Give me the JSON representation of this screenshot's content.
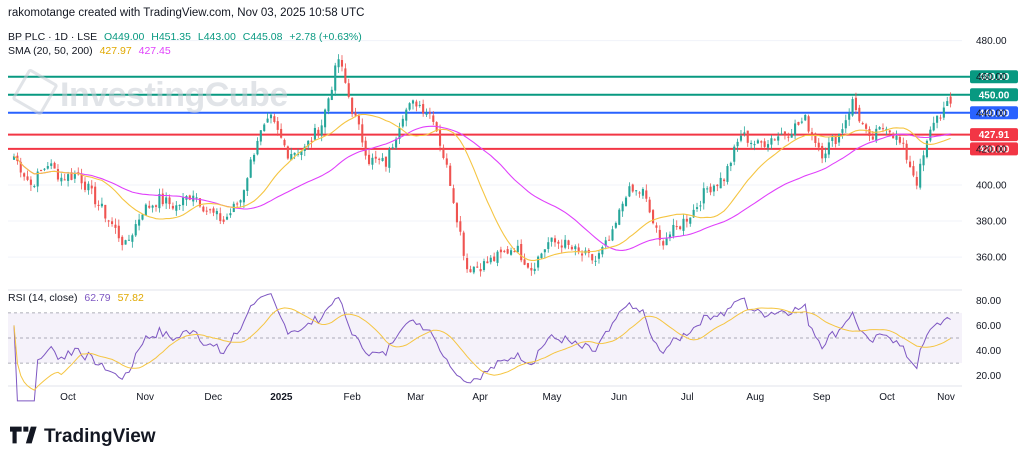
{
  "header": {
    "created": "rakomotange created with TradingView.com, Nov 03, 2025 10:58 UTC"
  },
  "symbol": {
    "name": "BP PLC · 1D · LSE",
    "open": "O449.00",
    "high": "H451.35",
    "low": "L443.00",
    "close": "C445.08",
    "change": "+2.78 (+0.63%)"
  },
  "sma_legend": {
    "label": "SMA (20, 50, 200)",
    "v1": "427.97",
    "v2": "427.45"
  },
  "rsi_legend": {
    "label": "RSI (14, close)",
    "v1": "62.79",
    "v2": "57.82"
  },
  "watermark": "InvestingCube",
  "branding": "TradingView",
  "colors": {
    "up": "#26a69a",
    "down": "#ef5350",
    "sma20": "#f5c542",
    "sma50": "#e040fb",
    "rsi": "#7e57c2",
    "rsi_ma": "#f5c542",
    "level_green": "#089981",
    "level_blue": "#2962ff",
    "level_red": "#f23645"
  },
  "chart_data": [
    {
      "type": "candlestick",
      "title": "BP PLC · 1D · LSE",
      "x_tick_labels": [
        "Oct",
        "Nov",
        "Dec",
        "2025",
        "Feb",
        "Mar",
        "Apr",
        "May",
        "Jun",
        "Jul",
        "Aug",
        "Sep",
        "Oct",
        "Nov"
      ],
      "y_tick_labels": [
        "480.00",
        "460.00",
        "440.00",
        "420.00",
        "400.00",
        "380.00",
        "360.00"
      ],
      "ylim": [
        344,
        487
      ],
      "horizontal_levels": [
        {
          "label": "460.00",
          "value": 460.0,
          "color": "green"
        },
        {
          "label": "450.00",
          "value": 450.0,
          "color": "green"
        },
        {
          "label": "440.00",
          "value": 440.0,
          "color": "blue"
        },
        {
          "label": "427.91",
          "value": 427.91,
          "color": "red"
        },
        {
          "label": "420.00",
          "value": 420.0,
          "color": "red"
        }
      ],
      "close_anchors": [
        [
          "Oct 1",
          416
        ],
        [
          "Oct 7",
          400
        ],
        [
          "Oct 14",
          412
        ],
        [
          "Oct 21",
          404
        ],
        [
          "Oct 28",
          406
        ],
        [
          "Nov 4",
          392
        ],
        [
          "Nov 11",
          378
        ],
        [
          "Nov 18",
          366
        ],
        [
          "Nov 25",
          386
        ],
        [
          "Dec 2",
          392
        ],
        [
          "Dec 9",
          388
        ],
        [
          "Dec 16",
          396
        ],
        [
          "Dec 23",
          386
        ],
        [
          "Jan 2",
          380
        ],
        [
          "Jan 9",
          392
        ],
        [
          "Jan 16",
          426
        ],
        [
          "Jan 23",
          436
        ],
        [
          "Jan 30",
          418
        ],
        [
          "Feb 6",
          420
        ],
        [
          "Feb 13",
          434
        ],
        [
          "Feb 20",
          470
        ],
        [
          "Feb 27",
          442
        ],
        [
          "Mar 6",
          414
        ],
        [
          "Mar 13",
          412
        ],
        [
          "Mar 20",
          440
        ],
        [
          "Mar 27",
          446
        ],
        [
          "Apr 1",
          438
        ],
        [
          "Apr 3",
          402
        ],
        [
          "Apr 7",
          354
        ],
        [
          "Apr 14",
          356
        ],
        [
          "Apr 22",
          360
        ],
        [
          "Apr 29",
          366
        ],
        [
          "May 6",
          354
        ],
        [
          "May 13",
          368
        ],
        [
          "May 20",
          368
        ],
        [
          "May 28",
          362
        ],
        [
          "Jun 4",
          358
        ],
        [
          "Jun 11",
          372
        ],
        [
          "Jun 18",
          396
        ],
        [
          "Jun 25",
          396
        ],
        [
          "Jul 2",
          368
        ],
        [
          "Jul 9",
          376
        ],
        [
          "Jul 16",
          386
        ],
        [
          "Jul 23",
          398
        ],
        [
          "Jul 30",
          404
        ],
        [
          "Aug 6",
          428
        ],
        [
          "Aug 13",
          422
        ],
        [
          "Aug 20",
          426
        ],
        [
          "Aug 27",
          430
        ],
        [
          "Sep 3",
          436
        ],
        [
          "Sep 10",
          418
        ],
        [
          "Sep 17",
          428
        ],
        [
          "Sep 24",
          446
        ],
        [
          "Oct 1",
          424
        ],
        [
          "Oct 8",
          434
        ],
        [
          "Oct 15",
          420
        ],
        [
          "Oct 20",
          402
        ],
        [
          "Oct 27",
          436
        ],
        [
          "Nov 3",
          445.08
        ]
      ],
      "series": [
        {
          "name": "SMA 20",
          "last": 427.97
        },
        {
          "name": "SMA 50",
          "last": 427.45
        }
      ]
    },
    {
      "type": "line",
      "title": "RSI (14, close)",
      "y_tick_labels": [
        "80.00",
        "60.00",
        "40.00",
        "20.00"
      ],
      "ylim": [
        15,
        85
      ],
      "band": [
        30,
        70
      ],
      "mid_line": 50,
      "series": [
        {
          "name": "RSI",
          "last": 62.79
        },
        {
          "name": "RSI MA",
          "last": 57.82
        }
      ]
    }
  ]
}
